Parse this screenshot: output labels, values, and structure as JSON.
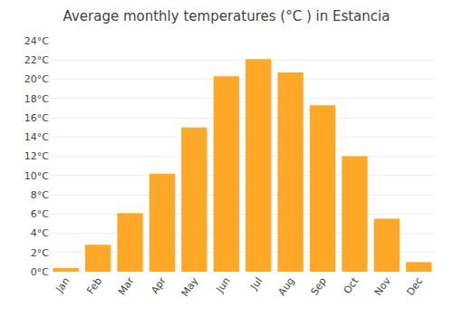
{
  "chart_data": {
    "type": "bar",
    "title": "Average monthly temperatures (°C ) in Estancia",
    "categories": [
      "Jan",
      "Feb",
      "Mar",
      "Apr",
      "May",
      "Jun",
      "Jul",
      "Aug",
      "Sep",
      "Oct",
      "Nov",
      "Dec"
    ],
    "values": [
      0.4,
      2.8,
      6.1,
      10.2,
      15.0,
      20.3,
      22.1,
      20.7,
      17.3,
      12.0,
      5.5,
      1.0
    ],
    "color": "#FFA726",
    "ylim": [
      0,
      24
    ],
    "yticks": [
      {
        "value": 0,
        "label": "0°C"
      },
      {
        "value": 2,
        "label": "2°C"
      },
      {
        "value": 4,
        "label": "4°C"
      },
      {
        "value": 6,
        "label": "6°C"
      },
      {
        "value": 8,
        "label": "8°C"
      },
      {
        "value": 10,
        "label": "10°C"
      },
      {
        "value": 12,
        "label": "12°C"
      },
      {
        "value": 14,
        "label": "14°C"
      },
      {
        "value": 16,
        "label": "16°C"
      },
      {
        "value": 18,
        "label": "18°C"
      },
      {
        "value": 20,
        "label": "20°C"
      },
      {
        "value": 22,
        "label": "22°C"
      },
      {
        "value": 24,
        "label": "24°C"
      }
    ],
    "grid": true
  }
}
